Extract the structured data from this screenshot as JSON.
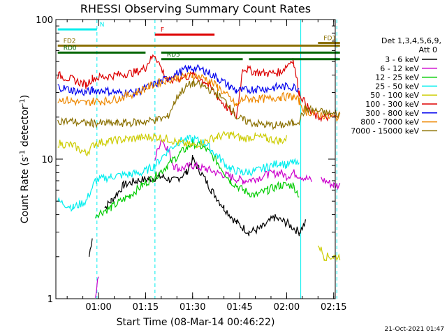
{
  "chart_data": {
    "type": "line",
    "title": "RHESSI Observing Summary Count Rates",
    "xlabel": "Start Time (08-Mar-14 00:46:22)",
    "ylabel": "Count Rate (s",
    "ylabel_sup": "-1",
    "ylabel_tail": " detector",
    "ylabel_sup2": "-1",
    "ylabel_close": ")",
    "yscale": "log",
    "ylim": [
      1,
      100
    ],
    "yticks": [
      {
        "v": 1,
        "label": "1"
      },
      {
        "v": 10,
        "label": "10"
      },
      {
        "v": 100,
        "label": "100"
      }
    ],
    "xlim_min": [
      46.4,
      135.5
    ],
    "xticks": [
      {
        "m": 60,
        "label": "01:00"
      },
      {
        "m": 75,
        "label": "01:15"
      },
      {
        "m": 90,
        "label": "01:30"
      },
      {
        "m": 105,
        "label": "01:45"
      },
      {
        "m": 120,
        "label": "02:00"
      },
      {
        "m": 135,
        "label": "02:15"
      }
    ],
    "footer_date": "21-Oct-2021 01:47",
    "legend_title": [
      "Det 1,3,4,5,6,9,",
      "Att 0"
    ],
    "series": [
      {
        "name": "3 - 6 keV",
        "color": "#000000",
        "pts": [
          [
            57,
            2.0
          ],
          [
            58,
            2.8
          ],
          [
            61,
            null
          ],
          [
            62,
            4.5
          ],
          [
            64,
            5.0
          ],
          [
            68,
            6.5
          ],
          [
            72,
            7.0
          ],
          [
            76,
            7.2
          ],
          [
            80,
            7.5
          ],
          [
            84,
            7.0
          ],
          [
            88,
            8.0
          ],
          [
            90,
            10.0
          ],
          [
            92,
            8.5
          ],
          [
            96,
            6.0
          ],
          [
            100,
            4.5
          ],
          [
            104,
            3.5
          ],
          [
            108,
            3.0
          ],
          [
            112,
            3.2
          ],
          [
            116,
            3.8
          ],
          [
            120,
            3.5
          ],
          [
            124,
            3.0
          ],
          [
            126,
            3.5
          ],
          [
            127,
            null
          ]
        ]
      },
      {
        "name": "6 - 12 keV",
        "color": "#cc00cc",
        "pts": [
          [
            59,
            1.0
          ],
          [
            60,
            1.5
          ],
          [
            61,
            null
          ],
          [
            78,
            10.0
          ],
          [
            80,
            14.0
          ],
          [
            82,
            12.0
          ],
          [
            84,
            9.0
          ],
          [
            86,
            8.5
          ],
          [
            90,
            9.0
          ],
          [
            94,
            8.5
          ],
          [
            98,
            8.0
          ],
          [
            102,
            7.5
          ],
          [
            106,
            7.0
          ],
          [
            110,
            7.2
          ],
          [
            114,
            7.8
          ],
          [
            118,
            8.0
          ],
          [
            120,
            7.5
          ],
          [
            122,
            8.0
          ],
          [
            128,
            7.0
          ],
          [
            130,
            null
          ],
          [
            131,
            7.2
          ],
          [
            135,
            6.5
          ],
          [
            137,
            6.5
          ]
        ]
      },
      {
        "name": "12 - 25 keV",
        "color": "#00cc00",
        "pts": [
          [
            59,
            4.0
          ],
          [
            64,
            4.5
          ],
          [
            70,
            5.5
          ],
          [
            74,
            6.5
          ],
          [
            78,
            7.5
          ],
          [
            82,
            9.0
          ],
          [
            86,
            11.0
          ],
          [
            90,
            13.0
          ],
          [
            94,
            12.0
          ],
          [
            98,
            9.5
          ],
          [
            102,
            7.0
          ],
          [
            106,
            6.0
          ],
          [
            110,
            5.5
          ],
          [
            114,
            6.0
          ],
          [
            118,
            6.5
          ],
          [
            122,
            6.5
          ],
          [
            124,
            5.5
          ],
          [
            126,
            null
          ]
        ]
      },
      {
        "name": "25 - 50 keV",
        "color": "#00eeee",
        "pts": [
          [
            47,
            5.0
          ],
          [
            52,
            4.5
          ],
          [
            56,
            5.0
          ],
          [
            59,
            7.0
          ],
          [
            64,
            7.5
          ],
          [
            70,
            7.8
          ],
          [
            74,
            8.0
          ],
          [
            78,
            9.0
          ],
          [
            82,
            11.5
          ],
          [
            86,
            13.5
          ],
          [
            90,
            14.0
          ],
          [
            94,
            13.0
          ],
          [
            98,
            10.5
          ],
          [
            102,
            8.5
          ],
          [
            106,
            8.0
          ],
          [
            110,
            8.2
          ],
          [
            114,
            8.8
          ],
          [
            118,
            9.5
          ],
          [
            120,
            9.0
          ],
          [
            122,
            9.5
          ],
          [
            124,
            9.0
          ],
          [
            126,
            null
          ]
        ]
      },
      {
        "name": "50 - 100 keV",
        "color": "#cccc00",
        "pts": [
          [
            47,
            13.0
          ],
          [
            52,
            12.5
          ],
          [
            56,
            11.0
          ],
          [
            59,
            13.0
          ],
          [
            64,
            13.5
          ],
          [
            70,
            14.0
          ],
          [
            74,
            14.2
          ],
          [
            78,
            14.5
          ],
          [
            82,
            14.0
          ],
          [
            86,
            13.0
          ],
          [
            90,
            12.5
          ],
          [
            94,
            13.5
          ],
          [
            98,
            14.5
          ],
          [
            102,
            15.0
          ],
          [
            106,
            14.0
          ],
          [
            110,
            14.5
          ],
          [
            114,
            14.0
          ],
          [
            118,
            13.5
          ],
          [
            120,
            14.0
          ],
          [
            122,
            null
          ],
          [
            130,
            2.5
          ],
          [
            132,
            2.0
          ],
          [
            135,
            2.0
          ],
          [
            137,
            2.0
          ]
        ]
      },
      {
        "name": "100 - 300 keV",
        "color": "#dd0000",
        "pts": [
          [
            47,
            40.0
          ],
          [
            52,
            37.0
          ],
          [
            56,
            34.0
          ],
          [
            58,
            38.0
          ],
          [
            62,
            39.0
          ],
          [
            66,
            40.0
          ],
          [
            72,
            42.0
          ],
          [
            75,
            45.0
          ],
          [
            76,
            50.0
          ],
          [
            78,
            56.0
          ],
          [
            82,
            36.0
          ],
          [
            86,
            38.0
          ],
          [
            90,
            40.0
          ],
          [
            94,
            36.0
          ],
          [
            98,
            28.0
          ],
          [
            102,
            22.0
          ],
          [
            104,
            20.0
          ],
          [
            106,
            45.0
          ],
          [
            110,
            42.0
          ],
          [
            114,
            41.0
          ],
          [
            118,
            42.0
          ],
          [
            122,
            52.0
          ],
          [
            124,
            30.0
          ],
          [
            126,
            25.0
          ],
          [
            128,
            21.0
          ],
          [
            130,
            20.0
          ],
          [
            132,
            20.0
          ],
          [
            136,
            20.0
          ]
        ]
      },
      {
        "name": "300 - 800 keV",
        "color": "#0000ee",
        "pts": [
          [
            47,
            33.0
          ],
          [
            52,
            31.0
          ],
          [
            56,
            30.0
          ],
          [
            58,
            31.0
          ],
          [
            62,
            31.0
          ],
          [
            66,
            30.0
          ],
          [
            72,
            30.0
          ],
          [
            76,
            33.0
          ],
          [
            80,
            36.0
          ],
          [
            84,
            40.0
          ],
          [
            88,
            44.0
          ],
          [
            90,
            45.0
          ],
          [
            94,
            43.0
          ],
          [
            98,
            38.0
          ],
          [
            102,
            33.0
          ],
          [
            104,
            31.0
          ],
          [
            106,
            31.0
          ],
          [
            110,
            32.0
          ],
          [
            114,
            32.0
          ],
          [
            118,
            33.0
          ],
          [
            122,
            33.0
          ],
          [
            124,
            32.0
          ],
          [
            126,
            null
          ]
        ]
      },
      {
        "name": "800 - 7000 keV",
        "color": "#ee8800",
        "pts": [
          [
            47,
            27.0
          ],
          [
            52,
            26.0
          ],
          [
            56,
            25.0
          ],
          [
            58,
            26.0
          ],
          [
            62,
            26.0
          ],
          [
            66,
            27.0
          ],
          [
            72,
            30.0
          ],
          [
            76,
            33.0
          ],
          [
            80,
            36.0
          ],
          [
            84,
            38.0
          ],
          [
            88,
            39.0
          ],
          [
            90,
            40.0
          ],
          [
            94,
            38.0
          ],
          [
            98,
            33.0
          ],
          [
            102,
            27.0
          ],
          [
            104,
            24.0
          ],
          [
            106,
            27.0
          ],
          [
            110,
            27.0
          ],
          [
            114,
            27.0
          ],
          [
            118,
            28.0
          ],
          [
            122,
            28.0
          ],
          [
            124,
            26.0
          ],
          [
            126,
            22.0
          ],
          [
            130,
            21.0
          ],
          [
            134,
            20.0
          ],
          [
            137,
            20.0
          ]
        ]
      },
      {
        "name": "7000 - 15000 keV",
        "color": "#8b7000",
        "pts": [
          [
            47,
            19.0
          ],
          [
            52,
            18.5
          ],
          [
            56,
            18.0
          ],
          [
            58,
            18.2
          ],
          [
            62,
            18.0
          ],
          [
            66,
            18.0
          ],
          [
            70,
            18.2
          ],
          [
            74,
            18.5
          ],
          [
            78,
            19.0
          ],
          [
            82,
            20.0
          ],
          [
            84,
            25.0
          ],
          [
            86,
            30.0
          ],
          [
            88,
            33.0
          ],
          [
            90,
            35.0
          ],
          [
            94,
            33.0
          ],
          [
            98,
            29.0
          ],
          [
            102,
            24.0
          ],
          [
            104,
            20.0
          ],
          [
            106,
            19.0
          ],
          [
            110,
            18.0
          ],
          [
            114,
            17.5
          ],
          [
            118,
            17.5
          ],
          [
            122,
            18.0
          ],
          [
            124,
            19.0
          ],
          [
            126,
            23.0
          ],
          [
            130,
            22.0
          ],
          [
            134,
            21.0
          ],
          [
            137,
            21.0
          ]
        ]
      }
    ],
    "flags": [
      {
        "label": "N",
        "color": "#00eeee",
        "y": 85,
        "x1": 47,
        "x2": 59.5,
        "x3": 61.5,
        "x4": null
      },
      {
        "label": "F",
        "color": "#dd0000",
        "y": 78,
        "x1": 78,
        "x2": 97,
        "x3": null,
        "x4": null
      },
      {
        "label": "FD1",
        "color": "#8b7000",
        "y": 68,
        "x1": 130,
        "x2": 137,
        "x3": null,
        "x4": null
      },
      {
        "label": "FD2",
        "color": "#8b7000",
        "y": 65,
        "x1": 47,
        "x2": 137,
        "x3": null,
        "x4": null
      },
      {
        "label": "RD0",
        "color": "#006600",
        "y": 58,
        "x1": 47,
        "x2": 75,
        "x3": 80,
        "x4": 137
      },
      {
        "label": "RD5",
        "color": "#006600",
        "y": 52,
        "x1": 80,
        "x2": 106,
        "x3": 108,
        "x4": 137
      }
    ],
    "bands": [
      {
        "color": "#00eeee",
        "x": 59.5,
        "dashed": true
      },
      {
        "color": "#00eeee",
        "x": 78,
        "dashed": true
      },
      {
        "color": "#00eeee",
        "x": 124.5,
        "dashed": false
      },
      {
        "color": "#00eeee",
        "x": 136,
        "dashed": true
      }
    ]
  }
}
